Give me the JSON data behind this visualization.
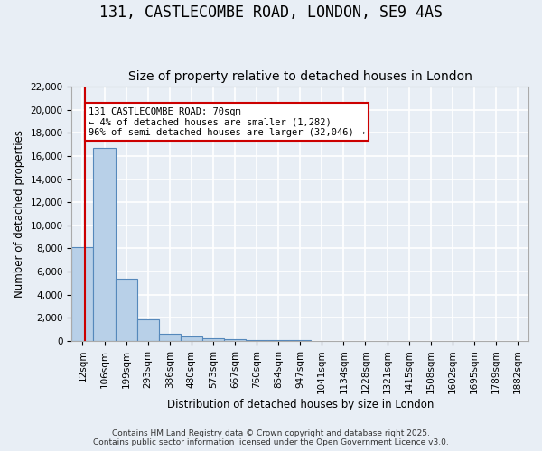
{
  "title": "131, CASTLECOMBE ROAD, LONDON, SE9 4AS",
  "subtitle": "Size of property relative to detached houses in London",
  "xlabel": "Distribution of detached houses by size in London",
  "ylabel": "Number of detached properties",
  "footnote": "Contains HM Land Registry data © Crown copyright and database right 2025.\nContains public sector information licensed under the Open Government Licence v3.0.",
  "bin_labels": [
    "12sqm",
    "106sqm",
    "199sqm",
    "293sqm",
    "386sqm",
    "480sqm",
    "573sqm",
    "667sqm",
    "760sqm",
    "854sqm",
    "947sqm",
    "1041sqm",
    "1134sqm",
    "1228sqm",
    "1321sqm",
    "1415sqm",
    "1508sqm",
    "1602sqm",
    "1695sqm",
    "1789sqm",
    "1882sqm"
  ],
  "bar_values": [
    8100,
    16700,
    5400,
    1900,
    600,
    350,
    200,
    120,
    80,
    60,
    40,
    30,
    20,
    15,
    10,
    8,
    6,
    5,
    4,
    3,
    2
  ],
  "bar_color": "#b8d0e8",
  "bar_edge_color": "#5588bb",
  "background_color": "#e8eef5",
  "grid_color": "#ffffff",
  "property_sqm": 70,
  "annotation_line1": "131 CASTLECOMBE ROAD: 70sqm",
  "annotation_line2": "← 4% of detached houses are smaller (1,282)",
  "annotation_line3": "96% of semi-detached houses are larger (32,046) →",
  "red_line_color": "#cc0000",
  "annotation_box_facecolor": "#ffffff",
  "annotation_border_color": "#cc0000",
  "ylim": [
    0,
    22000
  ],
  "ytick_interval": 2000,
  "title_fontsize": 12,
  "subtitle_fontsize": 10,
  "axis_label_fontsize": 8.5,
  "tick_fontsize": 7.5,
  "bin_edges_sqm": [
    12,
    106,
    199,
    293,
    386,
    480,
    573,
    667,
    760,
    854,
    947,
    1041,
    1134,
    1228,
    1321,
    1415,
    1508,
    1602,
    1695,
    1789,
    1882
  ]
}
